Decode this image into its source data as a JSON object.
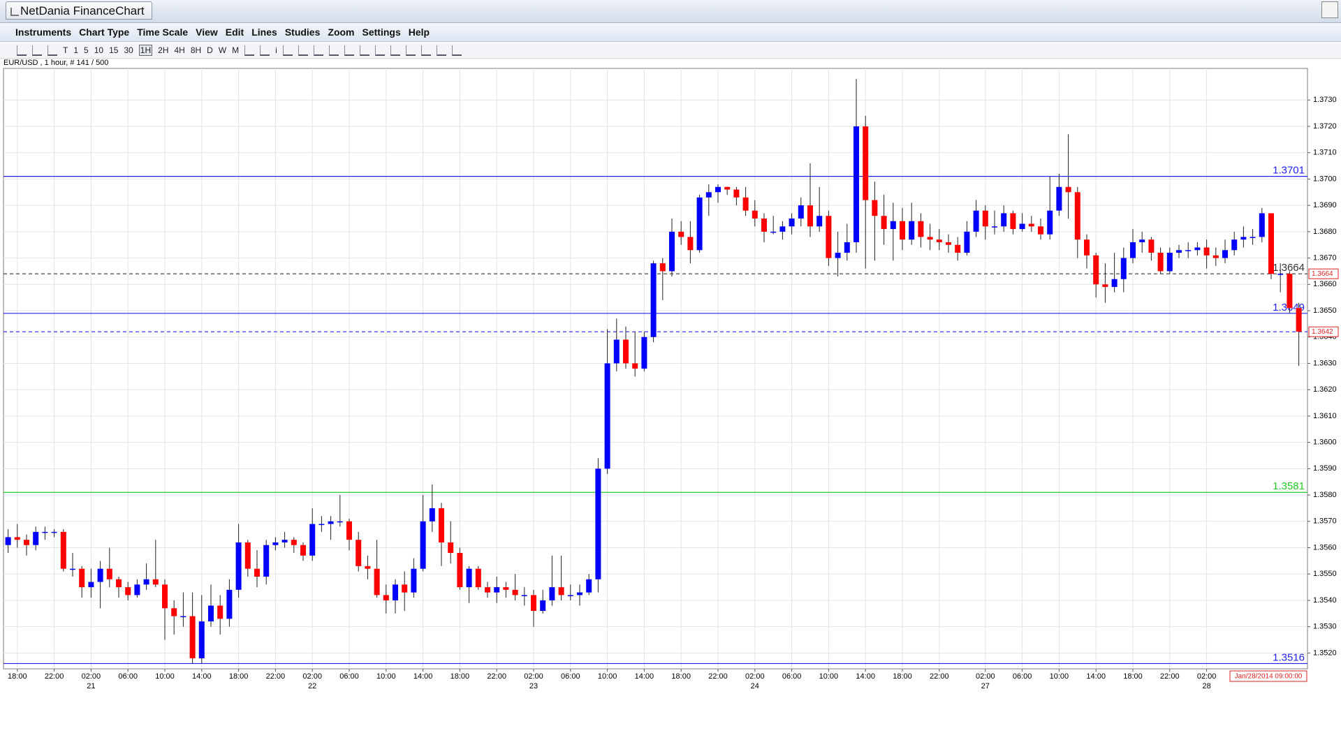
{
  "window": {
    "title": "NetDania FinanceChart"
  },
  "menu": [
    "Instruments",
    "Chart Type",
    "Time Scale",
    "View",
    "Edit",
    "Lines",
    "Studies",
    "Zoom",
    "Settings",
    "Help"
  ],
  "toolbar": {
    "timescales": [
      "T",
      "1",
      "5",
      "10",
      "15",
      "30",
      "1H",
      "2H",
      "4H",
      "8H",
      "D",
      "W",
      "M"
    ],
    "info": "i"
  },
  "chart_data": {
    "type": "candlestick",
    "subtitle": "EUR/USD , 1 hour, # 141 / 500",
    "cursor_label": "Jan/28/2014 09:00:00",
    "up_color": "#0000ff",
    "down_color": "#ff0000",
    "grid": true,
    "ylim": [
      1.3514,
      1.3742
    ],
    "yticks": [
      {
        "value": 1.352,
        "label": "1.3520"
      },
      {
        "value": 1.353,
        "label": "1.3530"
      },
      {
        "value": 1.354,
        "label": "1.3540"
      },
      {
        "value": 1.355,
        "label": "1.3550"
      },
      {
        "value": 1.356,
        "label": "1.3560"
      },
      {
        "value": 1.357,
        "label": "1.3570"
      },
      {
        "value": 1.358,
        "label": "1.3580"
      },
      {
        "value": 1.359,
        "label": "1.3590"
      },
      {
        "value": 1.36,
        "label": "1.3600"
      },
      {
        "value": 1.361,
        "label": "1.3610"
      },
      {
        "value": 1.362,
        "label": "1.3620"
      },
      {
        "value": 1.363,
        "label": "1.3630"
      },
      {
        "value": 1.364,
        "label": "1.3640"
      },
      {
        "value": 1.365,
        "label": "1.3650"
      },
      {
        "value": 1.366,
        "label": "1.3660"
      },
      {
        "value": 1.367,
        "label": "1.3670"
      },
      {
        "value": 1.368,
        "label": "1.3680"
      },
      {
        "value": 1.369,
        "label": "1.3690"
      },
      {
        "value": 1.37,
        "label": "1.3700"
      },
      {
        "value": 1.371,
        "label": "1.3710"
      },
      {
        "value": 1.372,
        "label": "1.3720"
      },
      {
        "value": 1.373,
        "label": "1.3730"
      }
    ],
    "lines": [
      {
        "value": 1.3701,
        "color": "#2222ee",
        "dashed": false,
        "show_label": true,
        "axis_box": false
      },
      {
        "value": 1.3664,
        "color": "#333333",
        "dashed": true,
        "show_label": true,
        "axis_box": true
      },
      {
        "value": 1.3649,
        "color": "#2222ee",
        "dashed": false,
        "show_label": true,
        "axis_box": false
      },
      {
        "value": 1.3642,
        "color": "#2222ee",
        "dashed": true,
        "show_label": false,
        "axis_box": true
      },
      {
        "value": 1.3581,
        "color": "#22cc22",
        "dashed": false,
        "show_label": true,
        "axis_box": false
      },
      {
        "value": 1.3516,
        "color": "#2222ee",
        "dashed": false,
        "show_label": true,
        "axis_box": false
      }
    ],
    "categories": [
      null,
      "18:00",
      null,
      null,
      null,
      "22:00",
      null,
      null,
      null,
      "02:00",
      null,
      null,
      null,
      "06:00",
      null,
      null,
      null,
      "10:00",
      null,
      null,
      null,
      "14:00",
      null,
      null,
      null,
      "18:00",
      null,
      null,
      null,
      "22:00",
      null,
      null,
      null,
      "02:00",
      null,
      null,
      null,
      "06:00",
      null,
      null,
      null,
      "10:00",
      null,
      null,
      null,
      "14:00",
      null,
      null,
      null,
      "18:00",
      null,
      null,
      null,
      "22:00",
      null,
      null,
      null,
      "02:00",
      null,
      null,
      null,
      "06:00",
      null,
      null,
      null,
      "10:00",
      null,
      null,
      null,
      "14:00",
      null,
      null,
      null,
      "18:00",
      null,
      null,
      null,
      "22:00",
      null,
      null,
      null,
      "02:00",
      null,
      null,
      null,
      "06:00",
      null,
      null,
      null,
      "10:00",
      null,
      null,
      null,
      "14:00",
      null,
      null,
      null,
      "18:00",
      null,
      null,
      null,
      "22:00",
      null,
      null,
      null,
      null,
      "02:00",
      null,
      null,
      null,
      "06:00",
      null,
      null,
      null,
      "10:00",
      null,
      null,
      null,
      "14:00",
      null,
      null,
      null,
      "18:00",
      null,
      null,
      null,
      "22:00",
      null,
      null,
      null,
      "02:00",
      null,
      null,
      null,
      null,
      null,
      null,
      null,
      null,
      null,
      null
    ],
    "days": [
      null,
      null,
      null,
      null,
      null,
      null,
      null,
      null,
      null,
      "21",
      null,
      null,
      null,
      null,
      null,
      null,
      null,
      null,
      null,
      null,
      null,
      null,
      null,
      null,
      null,
      null,
      null,
      null,
      null,
      null,
      null,
      null,
      null,
      "22",
      null,
      null,
      null,
      null,
      null,
      null,
      null,
      null,
      null,
      null,
      null,
      null,
      null,
      null,
      null,
      null,
      null,
      null,
      null,
      null,
      null,
      null,
      null,
      "23",
      null,
      null,
      null,
      null,
      null,
      null,
      null,
      null,
      null,
      null,
      null,
      null,
      null,
      null,
      null,
      null,
      null,
      null,
      null,
      null,
      null,
      null,
      null,
      "24",
      null,
      null,
      null,
      null,
      null,
      null,
      null,
      null,
      null,
      null,
      null,
      null,
      null,
      null,
      null,
      null,
      null,
      null,
      null,
      null,
      null,
      null,
      null,
      null,
      "27",
      null,
      null,
      null,
      null,
      null,
      null,
      null,
      null,
      null,
      null,
      null,
      null,
      null,
      null,
      null,
      null,
      null,
      null,
      null,
      null,
      null,
      null,
      null,
      "28",
      null,
      null,
      null,
      null,
      null,
      null,
      null,
      null,
      null,
      null
    ],
    "open": [
      1.3561,
      1.3564,
      1.3563,
      1.3561,
      1.3566,
      1.3566,
      1.3566,
      1.3552,
      1.3552,
      1.3545,
      1.3547,
      1.3552,
      1.3548,
      1.3545,
      1.3542,
      1.3546,
      1.3548,
      1.3546,
      1.3537,
      1.3534,
      1.3534,
      1.3518,
      1.3532,
      1.3538,
      1.3533,
      1.3544,
      1.3562,
      1.3552,
      1.3549,
      1.3561,
      1.3562,
      1.3563,
      1.3561,
      1.3557,
      1.3569,
      1.3569,
      1.357,
      1.357,
      1.3563,
      1.3553,
      1.3552,
      1.3542,
      1.354,
      1.3546,
      1.3543,
      1.3552,
      1.357,
      1.3575,
      1.3562,
      1.3558,
      1.3545,
      1.3552,
      1.3545,
      1.3543,
      1.3545,
      1.3544,
      1.3542,
      1.3542,
      1.3536,
      1.354,
      1.3545,
      1.3542,
      1.3542,
      1.3543,
      1.3548,
      1.359,
      1.363,
      1.3639,
      1.363,
      1.3628,
      1.364,
      1.3668,
      1.3665,
      1.368,
      1.3678,
      1.3673,
      1.3693,
      1.3695,
      1.3697,
      1.3696,
      1.3693,
      1.3688,
      1.3685,
      1.368,
      1.368,
      1.3682,
      1.3685,
      1.369,
      1.3682,
      1.3686,
      1.367,
      1.3672,
      1.3676,
      1.372,
      1.3692,
      1.3686,
      1.3681,
      1.3684,
      1.3677,
      1.3684,
      1.3678,
      1.3677,
      1.3676,
      1.3675,
      1.3672,
      1.368,
      1.3688,
      1.3682,
      1.3682,
      1.3687,
      1.3681,
      1.3683,
      1.3682,
      1.3679,
      1.3688,
      1.3697,
      1.3695,
      1.3677,
      1.3671,
      1.366,
      1.3659,
      1.3662,
      1.367,
      1.3676,
      1.3677,
      1.3672,
      1.3665,
      1.3672,
      1.3673,
      1.3673,
      1.3674,
      1.3671,
      1.367,
      1.3673,
      1.3677,
      1.3678,
      1.3678,
      1.3687,
      1.3664,
      1.3664,
      1.3651
    ],
    "high": [
      1.3567,
      1.3569,
      1.3565,
      1.3568,
      1.3568,
      1.3567,
      1.3567,
      1.3558,
      1.3553,
      1.3552,
      1.3555,
      1.356,
      1.3549,
      1.3547,
      1.3548,
      1.3554,
      1.3563,
      1.3548,
      1.354,
      1.3543,
      1.3543,
      1.3542,
      1.3546,
      1.3542,
      1.3548,
      1.3569,
      1.3563,
      1.3559,
      1.3563,
      1.3564,
      1.3566,
      1.3564,
      1.3562,
      1.3575,
      1.3572,
      1.3572,
      1.358,
      1.3571,
      1.3566,
      1.3557,
      1.3563,
      1.3546,
      1.3548,
      1.3551,
      1.3556,
      1.358,
      1.3584,
      1.3577,
      1.357,
      1.356,
      1.3553,
      1.3553,
      1.3547,
      1.3549,
      1.3547,
      1.355,
      1.3545,
      1.3544,
      1.3544,
      1.3557,
      1.3557,
      1.3546,
      1.3546,
      1.355,
      1.3594,
      1.3643,
      1.3647,
      1.3644,
      1.3642,
      1.3642,
      1.3669,
      1.367,
      1.3685,
      1.3684,
      1.3684,
      1.3694,
      1.3698,
      1.3698,
      1.3697,
      1.3697,
      1.3697,
      1.3692,
      1.3687,
      1.3686,
      1.3684,
      1.3687,
      1.3693,
      1.3706,
      1.3697,
      1.3688,
      1.368,
      1.3683,
      1.3738,
      1.3724,
      1.3699,
      1.3694,
      1.3691,
      1.3689,
      1.3691,
      1.3687,
      1.3683,
      1.3681,
      1.3679,
      1.3678,
      1.3684,
      1.3692,
      1.369,
      1.3688,
      1.369,
      1.3688,
      1.3687,
      1.3686,
      1.3685,
      1.3701,
      1.3702,
      1.3717,
      1.3697,
      1.3679,
      1.3672,
      1.3668,
      1.3672,
      1.3674,
      1.3681,
      1.368,
      1.3678,
      1.3674,
      1.3674,
      1.3675,
      1.3676,
      1.3676,
      1.3677,
      1.3674,
      1.3677,
      1.368,
      1.3682,
      1.3681,
      1.3689,
      1.3687,
      1.3668,
      1.3665,
      1.3653
    ],
    "low": [
      1.3558,
      1.356,
      1.3557,
      1.3559,
      1.3563,
      1.3564,
      1.3551,
      1.3549,
      1.3541,
      1.3541,
      1.3537,
      1.3545,
      1.3541,
      1.354,
      1.3541,
      1.3544,
      1.3545,
      1.3525,
      1.3527,
      1.353,
      1.3516,
      1.3516,
      1.353,
      1.3527,
      1.353,
      1.3541,
      1.3549,
      1.3545,
      1.3546,
      1.3559,
      1.356,
      1.3558,
      1.3555,
      1.3555,
      1.3566,
      1.3563,
      1.3568,
      1.3559,
      1.3551,
      1.3548,
      1.3541,
      1.3535,
      1.3535,
      1.3536,
      1.3541,
      1.3551,
      1.3566,
      1.3553,
      1.3554,
      1.3544,
      1.3539,
      1.3544,
      1.3541,
      1.3539,
      1.3541,
      1.354,
      1.3538,
      1.353,
      1.3535,
      1.3538,
      1.354,
      1.354,
      1.3538,
      1.3542,
      1.3543,
      1.3588,
      1.3627,
      1.3628,
      1.3625,
      1.3627,
      1.3638,
      1.3654,
      1.3663,
      1.3675,
      1.3668,
      1.3672,
      1.3686,
      1.3691,
      1.3694,
      1.369,
      1.3686,
      1.3682,
      1.3676,
      1.3679,
      1.3677,
      1.3679,
      1.3682,
      1.3678,
      1.368,
      1.3667,
      1.3663,
      1.3669,
      1.3672,
      1.3666,
      1.3669,
      1.3675,
      1.3669,
      1.3673,
      1.3675,
      1.3674,
      1.3673,
      1.3673,
      1.3672,
      1.3669,
      1.3671,
      1.3678,
      1.3677,
      1.3679,
      1.368,
      1.3679,
      1.368,
      1.368,
      1.3677,
      1.3677,
      1.3686,
      1.3685,
      1.367,
      1.3666,
      1.3655,
      1.3653,
      1.3657,
      1.3657,
      1.3668,
      1.3672,
      1.3669,
      1.3664,
      1.3664,
      1.367,
      1.367,
      1.3671,
      1.3666,
      1.3667,
      1.3668,
      1.3671,
      1.3674,
      1.3675,
      1.3676,
      1.3662,
      1.3657,
      1.3649,
      1.3629
    ],
    "close": [
      1.3564,
      1.3563,
      1.3561,
      1.3566,
      1.3566,
      1.3566,
      1.3552,
      1.3552,
      1.3545,
      1.3547,
      1.3552,
      1.3548,
      1.3545,
      1.3542,
      1.3546,
      1.3548,
      1.3546,
      1.3537,
      1.3534,
      1.3534,
      1.3518,
      1.3532,
      1.3538,
      1.3533,
      1.3544,
      1.3562,
      1.3552,
      1.3549,
      1.3561,
      1.3562,
      1.3563,
      1.3561,
      1.3557,
      1.3569,
      1.3569,
      1.357,
      1.357,
      1.3563,
      1.3553,
      1.3552,
      1.3542,
      1.354,
      1.3546,
      1.3543,
      1.3552,
      1.357,
      1.3575,
      1.3562,
      1.3558,
      1.3545,
      1.3552,
      1.3545,
      1.3543,
      1.3545,
      1.3544,
      1.3542,
      1.3542,
      1.3536,
      1.354,
      1.3545,
      1.3542,
      1.3542,
      1.3543,
      1.3548,
      1.359,
      1.363,
      1.3639,
      1.363,
      1.3628,
      1.364,
      1.3668,
      1.3665,
      1.368,
      1.3678,
      1.3673,
      1.3693,
      1.3695,
      1.3697,
      1.3696,
      1.3693,
      1.3688,
      1.3685,
      1.368,
      1.368,
      1.3682,
      1.3685,
      1.369,
      1.3682,
      1.3686,
      1.367,
      1.3672,
      1.3676,
      1.372,
      1.3692,
      1.3686,
      1.3681,
      1.3684,
      1.3677,
      1.3684,
      1.3678,
      1.3677,
      1.3676,
      1.3675,
      1.3672,
      1.368,
      1.3688,
      1.3682,
      1.3682,
      1.3687,
      1.3681,
      1.3683,
      1.3682,
      1.3679,
      1.3688,
      1.3697,
      1.3695,
      1.3677,
      1.3671,
      1.366,
      1.3659,
      1.3662,
      1.367,
      1.3676,
      1.3677,
      1.3672,
      1.3665,
      1.3672,
      1.3673,
      1.3673,
      1.3674,
      1.3671,
      1.367,
      1.3673,
      1.3677,
      1.3678,
      1.3678,
      1.3687,
      1.3664,
      1.3664,
      1.3651,
      1.3642
    ]
  }
}
